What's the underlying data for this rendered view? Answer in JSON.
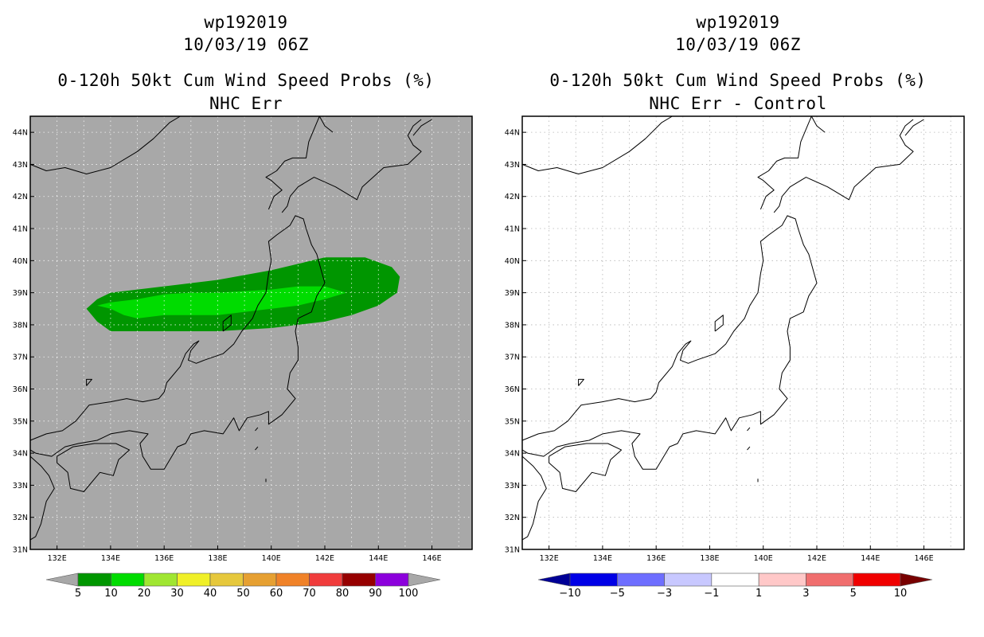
{
  "panels": [
    {
      "id": "nhc-err",
      "storm": "wp192019",
      "datetime": "10/03/19 06Z",
      "product": "0-120h 50kt Cum Wind Speed Probs (%)",
      "subtitle": "NHC Err",
      "background": "#a8a8a8",
      "lat_labels": [
        "44N",
        "43N",
        "42N",
        "41N",
        "40N",
        "39N",
        "38N",
        "37N",
        "36N",
        "35N",
        "34N",
        "33N",
        "32N",
        "31N"
      ],
      "lon_labels": [
        "132E",
        "134E",
        "136E",
        "138E",
        "140E",
        "142E",
        "144E",
        "146E"
      ],
      "colorbar": {
        "labels": [
          "5",
          "10",
          "20",
          "30",
          "40",
          "50",
          "60",
          "70",
          "80",
          "90",
          "100"
        ],
        "colors": [
          "#009600",
          "#00dc00",
          "#a0e632",
          "#f0f028",
          "#e6c83c",
          "#e6a032",
          "#f08228",
          "#f03c3c",
          "#960000",
          "#8c00dc"
        ],
        "end_colors": [
          "#a8a8a8",
          "#a8a8a8"
        ]
      }
    },
    {
      "id": "nhc-err-control",
      "storm": "wp192019",
      "datetime": "10/03/19 06Z",
      "product": "0-120h 50kt Cum Wind Speed Probs (%)",
      "subtitle": "NHC Err - Control",
      "background": "#ffffff",
      "lat_labels": [
        "44N",
        "43N",
        "42N",
        "41N",
        "40N",
        "39N",
        "38N",
        "37N",
        "36N",
        "35N",
        "34N",
        "33N",
        "32N",
        "31N"
      ],
      "lon_labels": [
        "132E",
        "134E",
        "136E",
        "138E",
        "140E",
        "142E",
        "144E",
        "146E"
      ],
      "colorbar": {
        "labels": [
          "−10",
          "−5",
          "−3",
          "−1",
          "1",
          "3",
          "5",
          "10"
        ],
        "colors": [
          "#0000e6",
          "#6e6eff",
          "#c8c8ff",
          "#ffffff",
          "#ffc8c8",
          "#f06e6e",
          "#f00000"
        ],
        "end_colors": [
          "#000096",
          "#780000"
        ]
      }
    }
  ],
  "map": {
    "lon_min": 131,
    "lon_max": 147.5,
    "lat_min": 31,
    "lat_max": 44.5
  }
}
